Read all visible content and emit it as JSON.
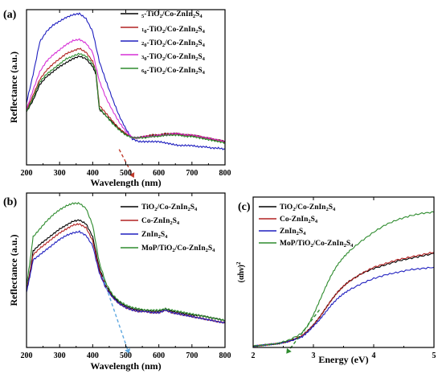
{
  "chart_data": [
    {
      "panel": "(a)",
      "type": "line",
      "xlabel": "Wavelength (nm)",
      "ylabel": "Reflectance (a.u.)",
      "xlim": [
        200,
        800
      ],
      "xticks": [
        200,
        300,
        400,
        500,
        600,
        700,
        800
      ],
      "ylim": [
        0,
        1.2
      ],
      "legend_position": "top-right",
      "series": [
        {
          "name": "5-TiO2/Co-ZnIn2S4",
          "color": "#000000",
          "x": [
            200,
            220,
            240,
            260,
            280,
            300,
            320,
            340,
            360,
            380,
            400,
            410,
            420,
            440,
            460,
            480,
            500,
            520,
            540,
            560,
            580,
            600,
            620,
            640,
            660,
            680,
            700,
            720,
            740,
            760,
            780,
            800
          ],
          "y": [
            0.41,
            0.5,
            0.62,
            0.68,
            0.72,
            0.76,
            0.79,
            0.82,
            0.84,
            0.82,
            0.76,
            0.7,
            0.43,
            0.38,
            0.33,
            0.28,
            0.24,
            0.21,
            0.21,
            0.22,
            0.23,
            0.23,
            0.24,
            0.24,
            0.24,
            0.23,
            0.23,
            0.22,
            0.21,
            0.2,
            0.19,
            0.18
          ]
        },
        {
          "name": "10-TiO2/Co-ZnIn2S4",
          "color": "#b22222",
          "x": [
            200,
            220,
            240,
            260,
            280,
            300,
            320,
            340,
            360,
            380,
            400,
            410,
            420,
            440,
            460,
            480,
            500,
            520,
            540,
            560,
            580,
            600,
            620,
            640,
            660,
            680,
            700,
            720,
            740,
            760,
            780,
            800
          ],
          "y": [
            0.42,
            0.54,
            0.66,
            0.73,
            0.78,
            0.82,
            0.86,
            0.88,
            0.9,
            0.87,
            0.8,
            0.72,
            0.46,
            0.4,
            0.34,
            0.28,
            0.24,
            0.21,
            0.21,
            0.22,
            0.23,
            0.23,
            0.24,
            0.24,
            0.24,
            0.23,
            0.23,
            0.22,
            0.21,
            0.2,
            0.19,
            0.18
          ]
        },
        {
          "name": "20-TiO2/Co-ZnIn2S4",
          "color": "#1f1fbf",
          "x": [
            200,
            220,
            240,
            260,
            280,
            300,
            320,
            340,
            360,
            380,
            400,
            420,
            440,
            460,
            480,
            500,
            520,
            540,
            560,
            580,
            600,
            620,
            640,
            660,
            680,
            700,
            720,
            740,
            760,
            780,
            800
          ],
          "y": [
            0.48,
            0.7,
            0.95,
            1.03,
            1.08,
            1.11,
            1.14,
            1.16,
            1.17,
            1.13,
            1.03,
            0.8,
            0.65,
            0.51,
            0.38,
            0.28,
            0.2,
            0.18,
            0.18,
            0.18,
            0.18,
            0.17,
            0.16,
            0.15,
            0.15,
            0.15,
            0.14,
            0.14,
            0.13,
            0.13,
            0.12
          ]
        },
        {
          "name": "30-TiO2/Co-ZnIn2S4",
          "color": "#d630d6",
          "x": [
            200,
            220,
            240,
            260,
            280,
            300,
            320,
            340,
            360,
            380,
            400,
            420,
            440,
            460,
            480,
            500,
            520,
            540,
            560,
            580,
            600,
            620,
            640,
            660,
            680,
            700,
            720,
            740,
            760,
            780,
            800
          ],
          "y": [
            0.43,
            0.58,
            0.72,
            0.8,
            0.85,
            0.89,
            0.93,
            0.96,
            0.97,
            0.94,
            0.87,
            0.65,
            0.52,
            0.42,
            0.33,
            0.26,
            0.21,
            0.21,
            0.22,
            0.22,
            0.23,
            0.23,
            0.24,
            0.24,
            0.23,
            0.23,
            0.22,
            0.21,
            0.2,
            0.19,
            0.18
          ]
        },
        {
          "name": "60-TiO2/Co-ZnIn2S4",
          "color": "#2e8b2e",
          "x": [
            200,
            220,
            240,
            260,
            280,
            300,
            320,
            340,
            360,
            380,
            400,
            410,
            420,
            440,
            460,
            480,
            500,
            520,
            540,
            560,
            580,
            600,
            620,
            640,
            660,
            680,
            700,
            720,
            740,
            760,
            780,
            800
          ],
          "y": [
            0.41,
            0.52,
            0.64,
            0.7,
            0.74,
            0.78,
            0.82,
            0.84,
            0.86,
            0.84,
            0.78,
            0.72,
            0.44,
            0.38,
            0.32,
            0.27,
            0.23,
            0.21,
            0.21,
            0.21,
            0.22,
            0.22,
            0.23,
            0.23,
            0.23,
            0.22,
            0.22,
            0.21,
            0.2,
            0.19,
            0.18,
            0.17
          ]
        }
      ],
      "annotation": {
        "type": "dashed-tangent",
        "color": "#c03a2b",
        "from": [
          480,
          0.12
        ],
        "to": [
          525,
          -0.1
        ]
      }
    },
    {
      "panel": "(b)",
      "type": "line",
      "xlabel": "Wavelength (nm)",
      "ylabel": "Reflectance (a.u.)",
      "xlim": [
        200,
        800
      ],
      "xticks": [
        200,
        300,
        400,
        500,
        600,
        700,
        800
      ],
      "ylim": [
        0,
        1.2
      ],
      "legend_position": "top-right",
      "series": [
        {
          "name": "TiO2/Co-ZnIn2S4",
          "color": "#000000",
          "x": [
            200,
            210,
            220,
            240,
            260,
            280,
            300,
            320,
            340,
            360,
            380,
            400,
            420,
            440,
            460,
            480,
            500,
            520,
            540,
            560,
            580,
            600,
            620,
            640,
            660,
            680,
            700,
            720,
            740,
            760,
            780,
            800
          ],
          "y": [
            0.45,
            0.58,
            0.75,
            0.8,
            0.84,
            0.88,
            0.92,
            0.95,
            0.98,
            0.99,
            0.96,
            0.86,
            0.62,
            0.48,
            0.4,
            0.35,
            0.32,
            0.3,
            0.29,
            0.29,
            0.28,
            0.28,
            0.3,
            0.28,
            0.27,
            0.26,
            0.25,
            0.25,
            0.24,
            0.23,
            0.22,
            0.21
          ]
        },
        {
          "name": "Co-ZnIn2S4",
          "color": "#b22222",
          "x": [
            200,
            210,
            220,
            240,
            260,
            280,
            300,
            320,
            340,
            360,
            380,
            400,
            420,
            440,
            460,
            480,
            500,
            520,
            540,
            560,
            580,
            600,
            620,
            640,
            660,
            680,
            700,
            720,
            740,
            760,
            780,
            800
          ],
          "y": [
            0.44,
            0.57,
            0.72,
            0.77,
            0.81,
            0.85,
            0.89,
            0.92,
            0.95,
            0.96,
            0.93,
            0.83,
            0.6,
            0.47,
            0.39,
            0.34,
            0.31,
            0.29,
            0.28,
            0.28,
            0.27,
            0.27,
            0.29,
            0.27,
            0.26,
            0.25,
            0.24,
            0.23,
            0.22,
            0.21,
            0.2,
            0.19
          ]
        },
        {
          "name": "ZnIn2S4",
          "color": "#1f1fbf",
          "x": [
            200,
            210,
            220,
            240,
            260,
            280,
            300,
            320,
            340,
            360,
            380,
            400,
            420,
            440,
            460,
            480,
            500,
            520,
            540,
            560,
            580,
            600,
            620,
            640,
            660,
            680,
            700,
            720,
            740,
            760,
            780,
            800
          ],
          "y": [
            0.43,
            0.55,
            0.68,
            0.72,
            0.76,
            0.8,
            0.84,
            0.87,
            0.89,
            0.9,
            0.87,
            0.79,
            0.58,
            0.46,
            0.39,
            0.34,
            0.31,
            0.29,
            0.28,
            0.28,
            0.27,
            0.27,
            0.29,
            0.27,
            0.26,
            0.25,
            0.24,
            0.23,
            0.22,
            0.21,
            0.2,
            0.19
          ]
        },
        {
          "name": "MoP/TiO2/Co-ZnIn2S4",
          "color": "#2e8b2e",
          "x": [
            200,
            210,
            220,
            240,
            260,
            280,
            300,
            320,
            340,
            360,
            380,
            400,
            420,
            440,
            460,
            480,
            500,
            520,
            540,
            560,
            580,
            600,
            620,
            640,
            660,
            680,
            700,
            720,
            740,
            760,
            780,
            800
          ],
          "y": [
            0.48,
            0.66,
            0.86,
            0.92,
            0.98,
            1.03,
            1.07,
            1.1,
            1.12,
            1.12,
            1.08,
            0.95,
            0.66,
            0.5,
            0.41,
            0.36,
            0.33,
            0.31,
            0.3,
            0.29,
            0.29,
            0.29,
            0.3,
            0.29,
            0.28,
            0.27,
            0.26,
            0.25,
            0.24,
            0.23,
            0.22,
            0.21
          ]
        }
      ],
      "annotation": {
        "type": "dashed-tangent",
        "color": "#5fa8e0",
        "from": [
          430,
          0.55
        ],
        "to": [
          510,
          -0.05
        ]
      }
    },
    {
      "panel": "(c)",
      "type": "line",
      "xlabel": "Energy (eV)",
      "ylabel": "(αhν)²",
      "xlim": [
        2,
        5
      ],
      "xticks": [
        2,
        3,
        4,
        5
      ],
      "ylim": [
        0,
        1.2
      ],
      "legend_position": "top-left",
      "series": [
        {
          "name": "TiO2/Co-ZnIn2S4",
          "color": "#000000",
          "x": [
            2.0,
            2.2,
            2.4,
            2.6,
            2.8,
            2.9,
            3.0,
            3.1,
            3.2,
            3.3,
            3.4,
            3.5,
            3.6,
            3.8,
            4.0,
            4.2,
            4.4,
            4.6,
            4.8,
            5.0
          ],
          "y": [
            0.01,
            0.02,
            0.03,
            0.05,
            0.09,
            0.13,
            0.18,
            0.24,
            0.31,
            0.38,
            0.44,
            0.49,
            0.53,
            0.59,
            0.63,
            0.66,
            0.69,
            0.71,
            0.73,
            0.75
          ]
        },
        {
          "name": "Co-ZnIn2S4",
          "color": "#b22222",
          "x": [
            2.0,
            2.2,
            2.4,
            2.6,
            2.8,
            2.9,
            3.0,
            3.1,
            3.2,
            3.3,
            3.4,
            3.5,
            3.6,
            3.8,
            4.0,
            4.2,
            4.4,
            4.6,
            4.8,
            5.0
          ],
          "y": [
            0.01,
            0.02,
            0.03,
            0.05,
            0.09,
            0.13,
            0.18,
            0.24,
            0.31,
            0.38,
            0.44,
            0.49,
            0.53,
            0.59,
            0.64,
            0.67,
            0.7,
            0.72,
            0.74,
            0.76
          ]
        },
        {
          "name": "ZnIn2S4",
          "color": "#1f1fbf",
          "x": [
            2.0,
            2.2,
            2.4,
            2.6,
            2.8,
            2.9,
            3.0,
            3.1,
            3.2,
            3.3,
            3.4,
            3.5,
            3.6,
            3.8,
            4.0,
            4.2,
            4.4,
            4.6,
            4.8,
            5.0
          ],
          "y": [
            0.01,
            0.02,
            0.03,
            0.05,
            0.08,
            0.12,
            0.17,
            0.22,
            0.28,
            0.34,
            0.39,
            0.43,
            0.46,
            0.51,
            0.55,
            0.58,
            0.6,
            0.62,
            0.63,
            0.64
          ]
        },
        {
          "name": "MoP/TiO2/Co-ZnIn2S4",
          "color": "#2e8b2e",
          "x": [
            2.0,
            2.2,
            2.4,
            2.6,
            2.8,
            2.9,
            3.0,
            3.1,
            3.2,
            3.3,
            3.4,
            3.5,
            3.6,
            3.8,
            4.0,
            4.2,
            4.4,
            4.6,
            4.8,
            5.0
          ],
          "y": [
            0.01,
            0.02,
            0.03,
            0.06,
            0.11,
            0.17,
            0.26,
            0.37,
            0.48,
            0.58,
            0.66,
            0.72,
            0.77,
            0.85,
            0.92,
            0.98,
            1.02,
            1.05,
            1.07,
            1.08
          ]
        }
      ],
      "annotation": {
        "type": "dashed-tangent",
        "color": "#2e8b2e",
        "from": [
          3.1,
          0.3
        ],
        "to": [
          2.55,
          -0.05
        ]
      }
    }
  ]
}
